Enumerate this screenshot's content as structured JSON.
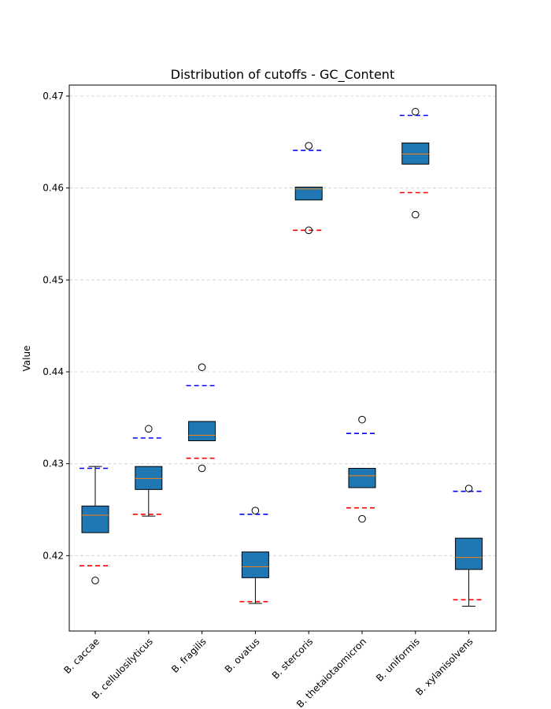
{
  "chart_data": {
    "type": "box",
    "title": "Distribution of cutoffs - GC_Content",
    "xlabel": "",
    "ylabel": "Value",
    "ylim": [
      0.4118,
      0.4712
    ],
    "yticks": [
      0.42,
      0.43,
      0.44,
      0.45,
      0.46,
      0.47
    ],
    "ytick_labels": [
      "0.42",
      "0.43",
      "0.44",
      "0.45",
      "0.46",
      "0.47"
    ],
    "grid": "y-dashed",
    "categories": [
      "B. caccae",
      "B. cellulosilyticus",
      "B. fragilis",
      "B. ovatus",
      "B. stercoris",
      "B. thetaiotaomicron",
      "B. uniformis",
      "B. xylanisolvens"
    ],
    "boxes": [
      {
        "whislo": 0.4225,
        "q1": 0.4225,
        "med": 0.4244,
        "q3": 0.4254,
        "whishi": 0.4297,
        "fliers": [
          0.4173
        ]
      },
      {
        "whislo": 0.4243,
        "q1": 0.4272,
        "med": 0.4284,
        "q3": 0.4297,
        "whishi": 0.4297,
        "fliers": [
          0.4338
        ]
      },
      {
        "whislo": 0.4325,
        "q1": 0.4325,
        "med": 0.4331,
        "q3": 0.4346,
        "whishi": 0.4346,
        "fliers": [
          0.4405,
          0.4295
        ]
      },
      {
        "whislo": 0.4148,
        "q1": 0.4176,
        "med": 0.4188,
        "q3": 0.4204,
        "whishi": 0.4204,
        "fliers": [
          0.4249
        ]
      },
      {
        "whislo": 0.4587,
        "q1": 0.4587,
        "med": 0.4599,
        "q3": 0.4601,
        "whishi": 0.4601,
        "fliers": [
          0.4646,
          0.4554
        ]
      },
      {
        "whislo": 0.4274,
        "q1": 0.4274,
        "med": 0.4287,
        "q3": 0.4295,
        "whishi": 0.4295,
        "fliers": [
          0.4348,
          0.424
        ]
      },
      {
        "whislo": 0.4626,
        "q1": 0.4626,
        "med": 0.4637,
        "q3": 0.4649,
        "whishi": 0.4649,
        "fliers": [
          0.4683,
          0.4571
        ]
      },
      {
        "whislo": 0.4145,
        "q1": 0.4185,
        "med": 0.4198,
        "q3": 0.4219,
        "whishi": 0.4219,
        "fliers": [
          0.4273
        ]
      }
    ],
    "upper_cutoffs": [
      0.4295,
      0.4328,
      0.4385,
      0.4245,
      0.4641,
      0.4333,
      0.4679,
      0.427
    ],
    "lower_cutoffs": [
      0.4189,
      0.4245,
      0.4306,
      0.415,
      0.4554,
      0.4252,
      0.4595,
      0.4152
    ],
    "colors": {
      "box_fill": "#1f77b4",
      "median": "#ff7f0e",
      "upper_cutoff": "#0000ff",
      "lower_cutoff": "#ff0000",
      "grid": "#cccccc"
    }
  }
}
